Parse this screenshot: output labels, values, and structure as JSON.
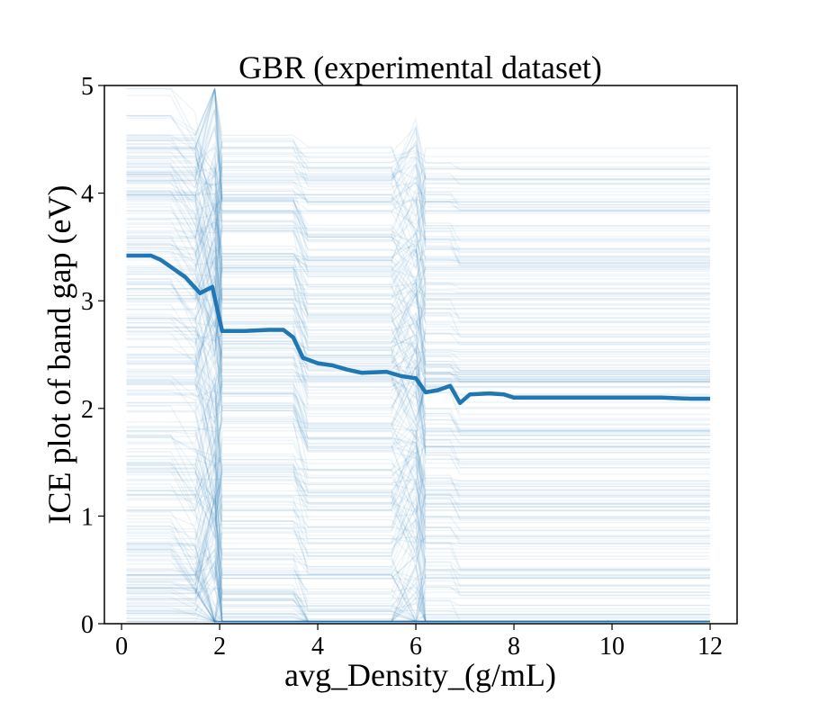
{
  "chart_data": {
    "type": "line",
    "title": "GBR (experimental dataset)",
    "xlabel": "avg_Density_(g/mL)",
    "ylabel": "ICE plot of band gap (eV)",
    "xlim": [
      -0.35,
      12.55
    ],
    "ylim": [
      0,
      5
    ],
    "xticks": [
      0,
      2,
      4,
      6,
      8,
      10,
      12
    ],
    "yticks": [
      0,
      1,
      2,
      3,
      4,
      5
    ],
    "grid": false,
    "legend": "none",
    "colors": {
      "ice_lines": "#1f77b4",
      "pd_line": "#1f77b4"
    },
    "series": [
      {
        "role": "partial-dependence-average",
        "x": [
          0.1,
          0.6,
          0.8,
          1.05,
          1.3,
          1.6,
          1.85,
          2.05,
          2.5,
          3.0,
          3.3,
          3.5,
          3.7,
          4.0,
          4.3,
          4.6,
          4.9,
          5.4,
          5.7,
          6.0,
          6.2,
          6.45,
          6.7,
          6.9,
          7.1,
          7.5,
          7.8,
          8.0,
          9.0,
          10.0,
          11.0,
          11.6,
          12.0
        ],
        "y": [
          3.42,
          3.42,
          3.38,
          3.3,
          3.22,
          3.07,
          3.13,
          2.72,
          2.72,
          2.73,
          2.73,
          2.66,
          2.47,
          2.42,
          2.4,
          2.36,
          2.33,
          2.34,
          2.3,
          2.28,
          2.15,
          2.17,
          2.21,
          2.05,
          2.13,
          2.14,
          2.13,
          2.1,
          2.1,
          2.1,
          2.1,
          2.09,
          2.09
        ]
      }
    ],
    "ice_summary": {
      "x_grid": [
        0.1,
        0.6,
        1.0,
        1.5,
        1.9,
        2.05,
        2.5,
        3.0,
        3.5,
        3.8,
        4.5,
        5.5,
        6.0,
        6.2,
        6.7,
        6.9,
        7.5,
        8.0,
        9.0,
        10.0,
        11.0,
        12.0
      ],
      "curve_count": 320,
      "y_range": [
        0,
        5
      ]
    }
  }
}
